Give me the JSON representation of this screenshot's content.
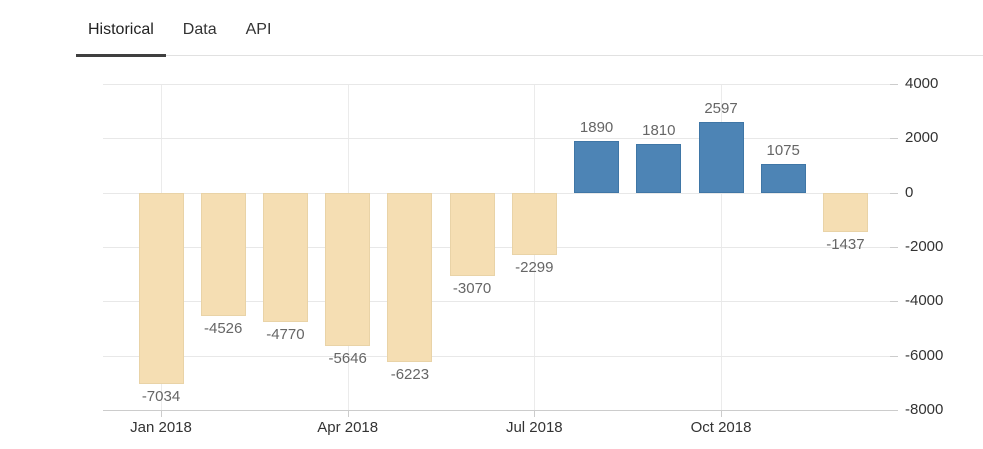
{
  "tabs": {
    "items": [
      {
        "label": "Historical",
        "active": true
      },
      {
        "label": "Data",
        "active": false
      },
      {
        "label": "API",
        "active": false
      }
    ]
  },
  "chart_data": {
    "type": "bar",
    "title": "",
    "xlabel": "",
    "ylabel": "",
    "values": [
      -7034,
      -4526,
      -4770,
      -5646,
      -6223,
      -3070,
      -2299,
      1890,
      1810,
      2597,
      1075,
      -1437
    ],
    "data_labels": [
      "-7034",
      "-4526",
      "-4770",
      "-5646",
      "-6223",
      "-3070",
      "-2299",
      "1890",
      "1810",
      "2597",
      "1075",
      "-1437"
    ],
    "x_tick_labels": [
      "Jan 2018",
      "Apr 2018",
      "Jul 2018",
      "Oct 2018"
    ],
    "x_tick_indices": [
      0,
      3,
      6,
      9
    ],
    "y_tick_labels": [
      "4000",
      "2000",
      "0",
      "-2000",
      "-4000",
      "-6000",
      "-8000"
    ],
    "y_ticks": [
      4000,
      2000,
      0,
      -2000,
      -4000,
      -6000,
      -8000
    ],
    "ylim": [
      -8000,
      4000
    ],
    "grid": true,
    "legend": "none",
    "colors": {
      "positive": "#4d84b5",
      "positive_border": "#3f76a6",
      "negative": "#f5deb3",
      "negative_border": "#e9d3a7",
      "gridline": "#e8e8e8",
      "axis_line": "#cccccc",
      "data_label_text": "#666666",
      "axis_label_text": "#333333",
      "tab_underline": "#3f3f3f"
    }
  }
}
